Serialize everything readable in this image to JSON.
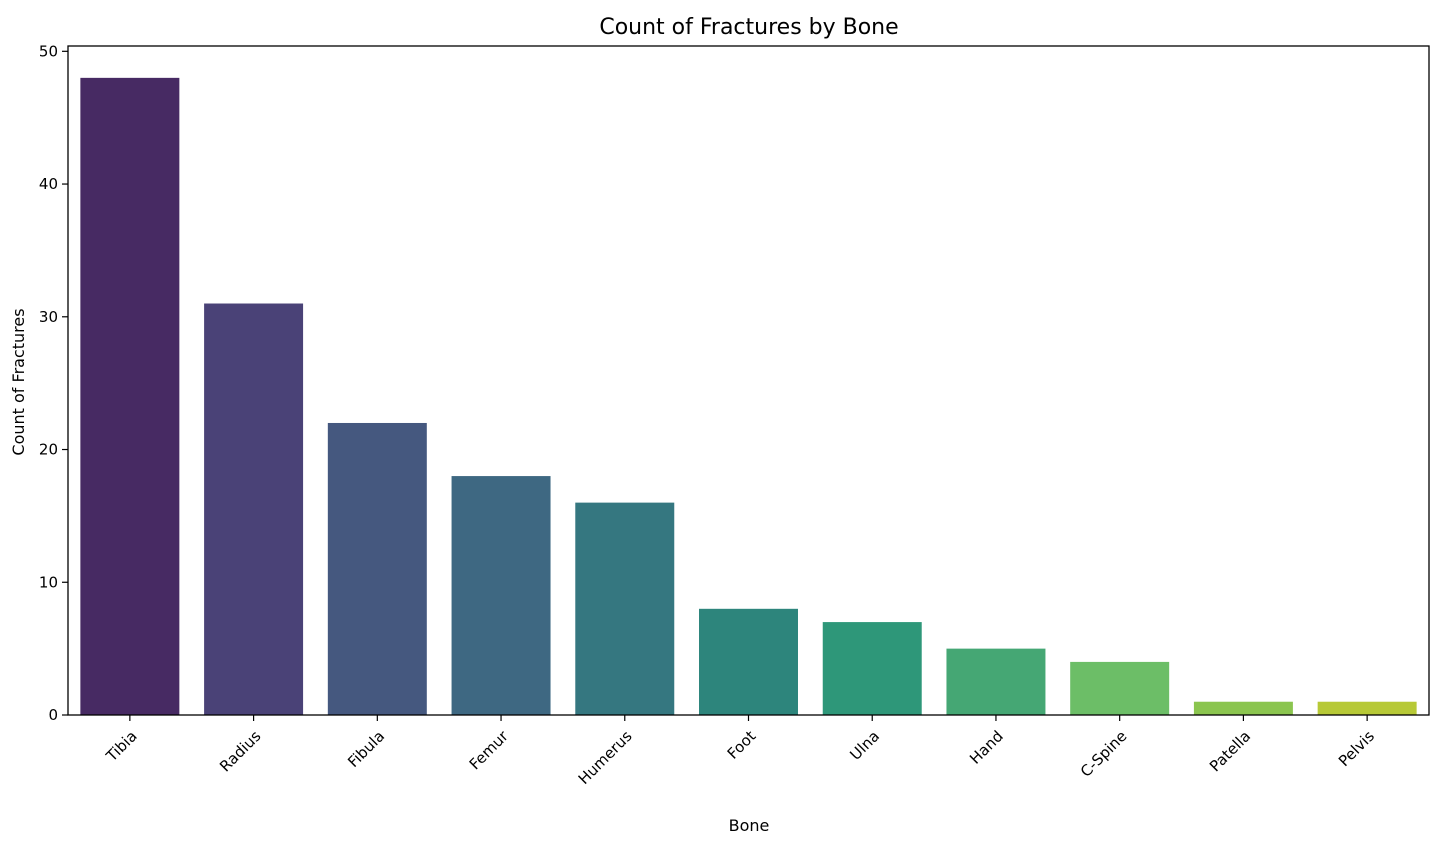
{
  "chart_data": {
    "type": "bar",
    "title": "Count of Fractures by Bone",
    "xlabel": "Bone",
    "ylabel": "Count of Fractures",
    "categories": [
      "Tibia",
      "Radius",
      "Fibula",
      "Femur",
      "Humerus",
      "Foot",
      "Ulna",
      "Hand",
      "C-Spine",
      "Patella",
      "Pelvis"
    ],
    "values": [
      48,
      31,
      22,
      18,
      16,
      8,
      7,
      5,
      4,
      1,
      1
    ],
    "ylim": [
      0,
      50.4
    ],
    "yticks": [
      "0",
      "10",
      "20",
      "30",
      "40",
      "50"
    ],
    "grid": false,
    "legend": "none",
    "colors": [
      "#472a63",
      "#4a4277",
      "#45587f",
      "#3e6882",
      "#357780",
      "#2d857c",
      "#2e9779",
      "#45a774",
      "#6cbe67",
      "#8bc54f",
      "#b7c936"
    ]
  }
}
